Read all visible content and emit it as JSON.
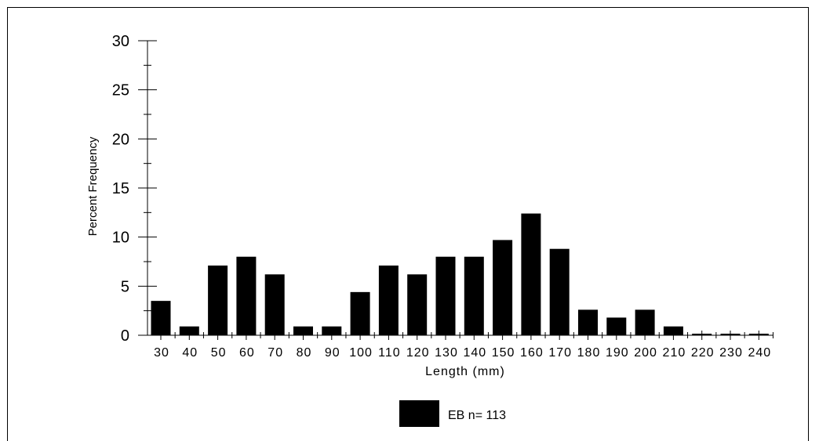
{
  "chart_data": {
    "type": "bar",
    "xlabel": "Length (mm)",
    "ylabel": "Percent Frequency",
    "ylim": [
      0,
      30
    ],
    "yticks": [
      0,
      5,
      10,
      15,
      20,
      25,
      30
    ],
    "categories": [
      "30",
      "40",
      "50",
      "60",
      "70",
      "80",
      "90",
      "100",
      "110",
      "120",
      "130",
      "140",
      "150",
      "160",
      "170",
      "180",
      "190",
      "200",
      "210",
      "220",
      "230",
      "240"
    ],
    "series": [
      {
        "name": "EB n= 113",
        "color": "#000000",
        "values": [
          3.5,
          0.9,
          7.1,
          8.0,
          6.2,
          0.9,
          0.9,
          4.4,
          7.1,
          6.2,
          8.0,
          8.0,
          9.7,
          12.4,
          8.8,
          2.6,
          1.8,
          2.6,
          0.9,
          0,
          0,
          0
        ]
      }
    ],
    "grid": false,
    "legend": "bottom-center"
  }
}
